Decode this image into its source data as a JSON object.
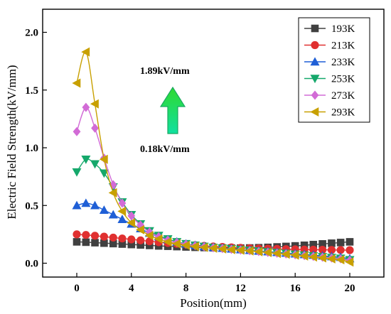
{
  "chart_data": {
    "type": "line",
    "title": "",
    "xlabel": "Position(mm)",
    "ylabel": "Electric Field Strength(kV/mm)",
    "xlim": [
      -2.5,
      22.5
    ],
    "ylim": [
      -0.12,
      2.2
    ],
    "xticks": [
      "0",
      "4",
      "8",
      "12",
      "16",
      "20"
    ],
    "yticks": [
      "0.0",
      "0.5",
      "1.0",
      "1.5",
      "2.0"
    ],
    "legend_position": "top-right",
    "annotations": [
      "1.89kV/mm",
      "0.18kV/mm"
    ],
    "x": [
      0,
      0.67,
      1.33,
      2,
      2.67,
      3.33,
      4,
      4.67,
      5.33,
      6,
      6.67,
      7.33,
      8,
      8.67,
      9.33,
      10,
      10.67,
      11.33,
      12,
      12.67,
      13.33,
      14,
      14.67,
      15.33,
      16,
      16.67,
      17.33,
      18,
      18.67,
      19.33,
      20
    ],
    "series": [
      {
        "name": "193K",
        "color": "#404040",
        "marker": "square",
        "values": [
          0.185,
          0.182,
          0.178,
          0.174,
          0.17,
          0.166,
          0.162,
          0.158,
          0.154,
          0.15,
          0.147,
          0.144,
          0.141,
          0.138,
          0.136,
          0.134,
          0.132,
          0.131,
          0.131,
          0.132,
          0.134,
          0.137,
          0.141,
          0.145,
          0.15,
          0.155,
          0.161,
          0.167,
          0.173,
          0.179,
          0.185
        ]
      },
      {
        "name": "213K",
        "color": "#e03030",
        "marker": "circle",
        "values": [
          0.25,
          0.245,
          0.238,
          0.23,
          0.222,
          0.214,
          0.206,
          0.198,
          0.19,
          0.182,
          0.175,
          0.168,
          0.162,
          0.156,
          0.15,
          0.145,
          0.141,
          0.137,
          0.133,
          0.13,
          0.128,
          0.126,
          0.124,
          0.122,
          0.12,
          0.118,
          0.117,
          0.116,
          0.115,
          0.114,
          0.113
        ]
      },
      {
        "name": "233K",
        "color": "#1f5fd6",
        "marker": "triangle-up",
        "values": [
          0.5,
          0.52,
          0.5,
          0.46,
          0.42,
          0.38,
          0.34,
          0.3,
          0.26,
          0.23,
          0.205,
          0.185,
          0.168,
          0.155,
          0.145,
          0.137,
          0.13,
          0.124,
          0.118,
          0.112,
          0.106,
          0.1,
          0.094,
          0.088,
          0.082,
          0.076,
          0.07,
          0.064,
          0.058,
          0.052,
          0.04
        ]
      },
      {
        "name": "253K",
        "color": "#15a86b",
        "marker": "triangle-down",
        "values": [
          0.79,
          0.9,
          0.86,
          0.78,
          0.66,
          0.53,
          0.42,
          0.34,
          0.28,
          0.24,
          0.21,
          0.185,
          0.168,
          0.155,
          0.145,
          0.137,
          0.13,
          0.124,
          0.118,
          0.112,
          0.105,
          0.098,
          0.091,
          0.084,
          0.077,
          0.07,
          0.063,
          0.056,
          0.049,
          0.042,
          0.03
        ]
      },
      {
        "name": "273K",
        "color": "#d26bd6",
        "marker": "diamond",
        "values": [
          1.14,
          1.35,
          1.17,
          0.91,
          0.68,
          0.52,
          0.41,
          0.33,
          0.27,
          0.23,
          0.2,
          0.18,
          0.165,
          0.152,
          0.142,
          0.134,
          0.127,
          0.12,
          0.114,
          0.108,
          0.101,
          0.094,
          0.087,
          0.08,
          0.073,
          0.066,
          0.059,
          0.052,
          0.045,
          0.038,
          0.025
        ]
      },
      {
        "name": "293K",
        "color": "#c8a000",
        "marker": "triangle-left",
        "values": [
          1.56,
          1.83,
          1.38,
          0.9,
          0.61,
          0.45,
          0.35,
          0.29,
          0.24,
          0.21,
          0.185,
          0.168,
          0.155,
          0.145,
          0.137,
          0.13,
          0.124,
          0.118,
          0.112,
          0.106,
          0.099,
          0.092,
          0.085,
          0.078,
          0.07,
          0.062,
          0.054,
          0.046,
          0.038,
          0.03,
          0.01
        ]
      }
    ]
  }
}
